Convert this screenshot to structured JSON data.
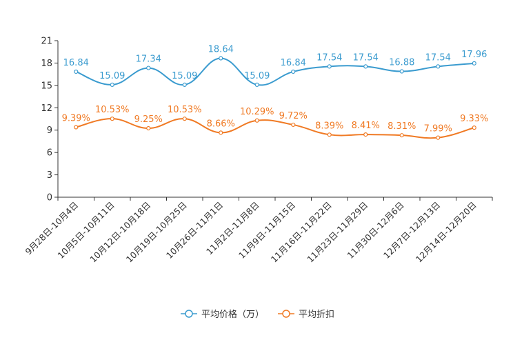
{
  "chart_data": {
    "type": "line",
    "categories": [
      "9月28日-10月4日",
      "10月5日-10月11日",
      "10月12日-10月18日",
      "10月19日-10月25日",
      "10月26日-11月1日",
      "11月2日-11月8日",
      "11月9日-11月15日",
      "11月16日-11月22日",
      "11月23日-11月29日",
      "11月30日-12月6日",
      "12月7日-12月13日",
      "12月14日-12月20日"
    ],
    "series": [
      {
        "name": "平均价格（万）",
        "color": "#3a9bcf",
        "values": [
          16.84,
          15.09,
          17.34,
          15.09,
          18.64,
          15.09,
          16.84,
          17.54,
          17.54,
          16.88,
          17.54,
          17.96
        ],
        "labels": [
          "16.84",
          "15.09",
          "17.34",
          "15.09",
          "18.64",
          "15.09",
          "16.84",
          "17.54",
          "17.54",
          "16.88",
          "17.54",
          "17.96"
        ]
      },
      {
        "name": "平均折扣",
        "color": "#f07a24",
        "values": [
          9.39,
          10.53,
          9.25,
          10.53,
          8.66,
          10.29,
          9.72,
          8.39,
          8.41,
          8.31,
          7.99,
          9.33
        ],
        "labels": [
          "9.39%",
          "10.53%",
          "9.25%",
          "10.53%",
          "8.66%",
          "10.29%",
          "9.72%",
          "8.39%",
          "8.41%",
          "8.31%",
          "7.99%",
          "9.33%"
        ]
      }
    ],
    "yticks": [
      "0",
      "3",
      "6",
      "9",
      "12",
      "15",
      "18",
      "21"
    ],
    "ylim": [
      0,
      21
    ],
    "title": "",
    "xlabel": "",
    "ylabel": "",
    "grid": false,
    "legend": "bottom-center"
  }
}
